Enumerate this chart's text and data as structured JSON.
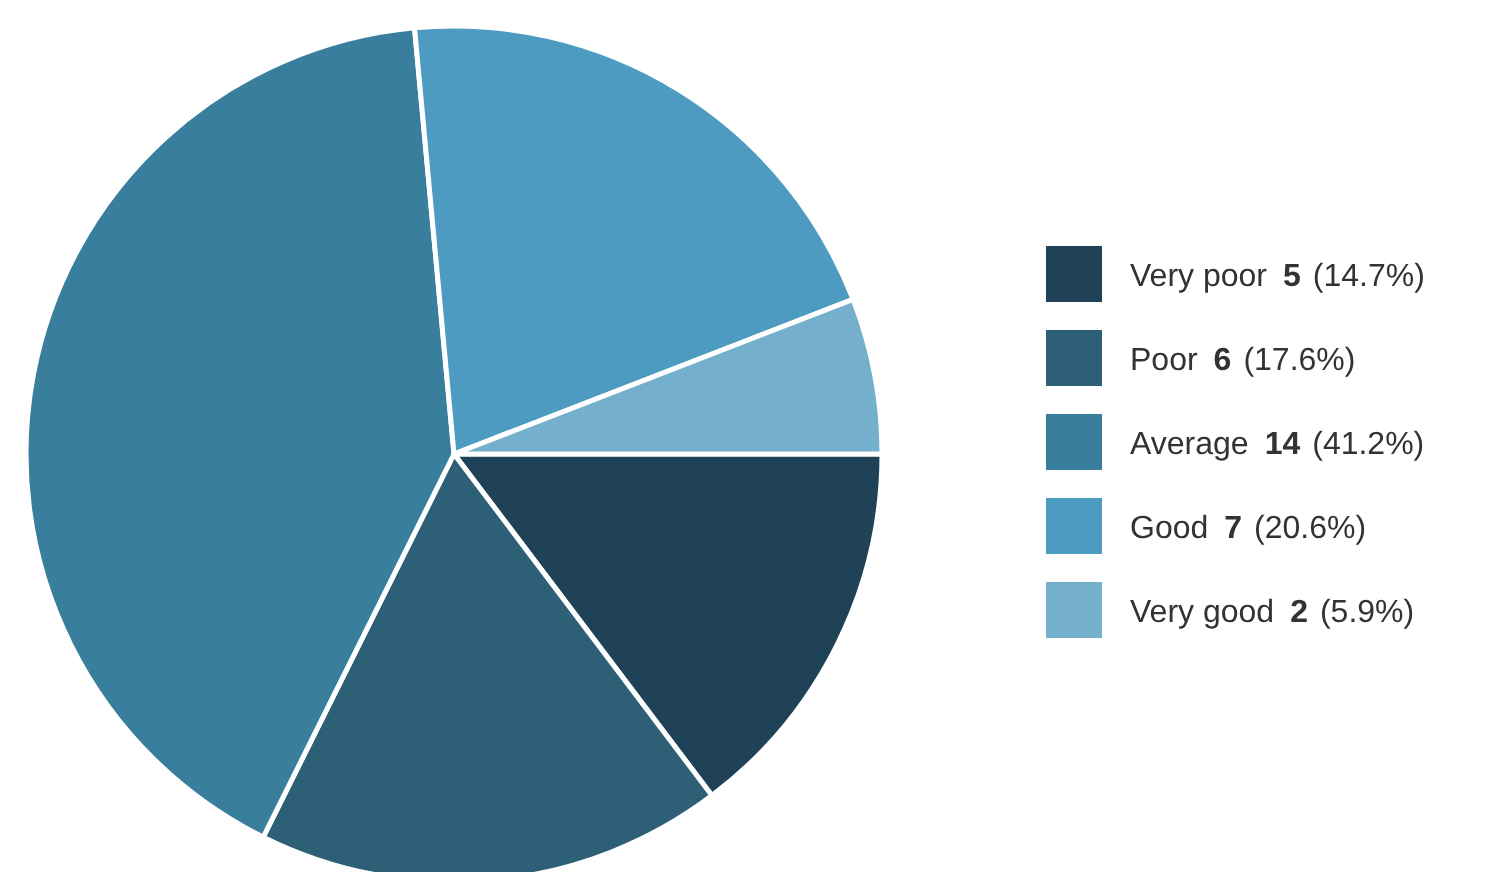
{
  "chart_data": {
    "type": "pie",
    "categories": [
      "Very poor",
      "Poor",
      "Average",
      "Good",
      "Very good"
    ],
    "values": [
      5,
      6,
      14,
      7,
      2
    ],
    "colors": [
      "#1f4257",
      "#2d5f77",
      "#3a7e9e",
      "#4d9bc1",
      "#74afcc"
    ],
    "value_labels": [
      "5 (14.7%)",
      "6 (17.6%)",
      "14 (41.2%)",
      "7 (20.6%)",
      "2 (5.9%)"
    ],
    "legend": "right"
  }
}
